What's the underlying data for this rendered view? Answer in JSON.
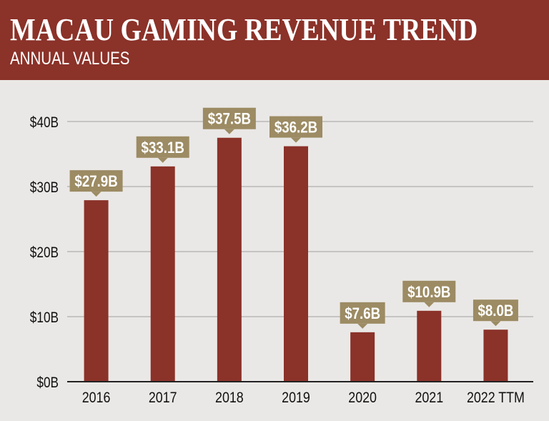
{
  "header": {
    "title": "MACAU GAMING REVENUE TREND",
    "subtitle": "ANNUAL VALUES"
  },
  "chart_data": {
    "type": "bar",
    "title": "MACAU GAMING REVENUE TREND",
    "subtitle": "ANNUAL VALUES",
    "categories": [
      "2016",
      "2017",
      "2018",
      "2019",
      "2020",
      "2021",
      "2022 TTM"
    ],
    "values": [
      27.9,
      33.1,
      37.5,
      36.2,
      7.6,
      10.9,
      8.0
    ],
    "data_labels": [
      "$27.9B",
      "$33.1B",
      "$37.5B",
      "$36.2B",
      "$7.6B",
      "$10.9B",
      "$8.0B"
    ],
    "yticks": [
      0,
      10,
      20,
      30,
      40
    ],
    "ytick_labels": [
      "$0B",
      "$10B",
      "$20B",
      "$30B",
      "$40B"
    ],
    "ylim": [
      0,
      40
    ],
    "grid": true,
    "colors": {
      "header": "#8b3229",
      "bar": "#8b3229",
      "label_box": "#9c8b63",
      "background": "#eae8e6"
    }
  }
}
